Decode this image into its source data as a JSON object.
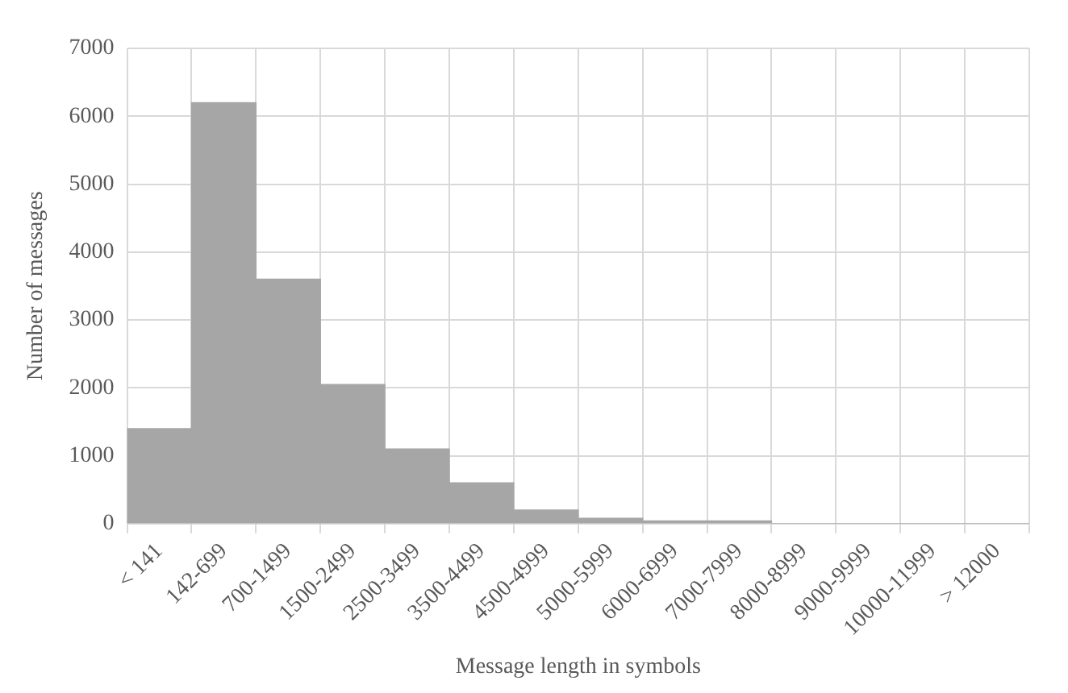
{
  "chart_data": {
    "type": "bar",
    "xlabel": "Message length in symbols",
    "ylabel": "Number of messages",
    "categories": [
      "< 141",
      "142-699",
      "700-1499",
      "1500-2499",
      "2500-3499",
      "3500-4499",
      "4500-4999",
      "5000-5999",
      "6000-6999",
      "7000-7999",
      "8000-8999",
      "9000-9999",
      "10000-11999",
      "> 12000"
    ],
    "values": [
      1400,
      6200,
      3600,
      2050,
      1100,
      600,
      200,
      80,
      40,
      40,
      0,
      0,
      0,
      0
    ],
    "color": "#a6a6a7",
    "ylim": [
      0,
      7000
    ],
    "yticks": [
      0,
      1000,
      2000,
      3000,
      4000,
      5000,
      6000,
      7000
    ],
    "grid": true,
    "legend": false
  }
}
